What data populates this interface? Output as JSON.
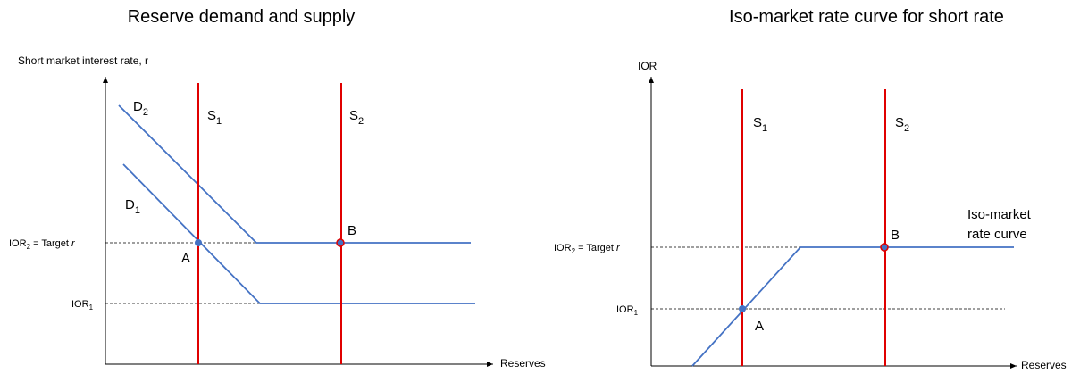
{
  "left": {
    "title": "Reserve demand and supply",
    "y_axis_label": "Short market interest rate, r",
    "x_axis_label": "Reserves",
    "labels": {
      "d2": {
        "main": "D",
        "sub": "2"
      },
      "d1": {
        "main": "D",
        "sub": "1"
      },
      "s1": {
        "main": "S",
        "sub": "1"
      },
      "s2": {
        "main": "S",
        "sub": "2"
      },
      "ior2": {
        "main": "IOR",
        "sub": "2",
        "rest": " = Target ",
        "italic": "r"
      },
      "ior1": {
        "main": "IOR",
        "sub": "1"
      },
      "a": "A",
      "b": "B"
    }
  },
  "right": {
    "title": "Iso-market rate curve for short rate",
    "y_axis_label": "IOR",
    "x_axis_label": "Reserves",
    "labels": {
      "s1": {
        "main": "S",
        "sub": "1"
      },
      "s2": {
        "main": "S",
        "sub": "2"
      },
      "ior2": {
        "main": "IOR",
        "sub": "2",
        "rest": " = Target ",
        "italic": "r"
      },
      "ior1": {
        "main": "IOR",
        "sub": "1"
      },
      "a": "A",
      "b": "B",
      "curve": [
        "Iso-market",
        "rate curve"
      ]
    }
  }
}
